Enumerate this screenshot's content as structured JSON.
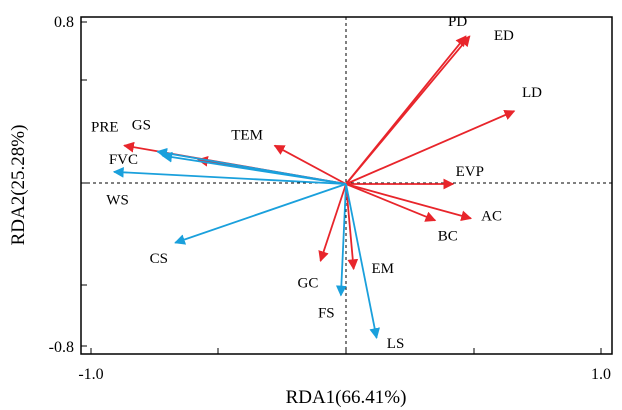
{
  "chart_data": {
    "type": "biplot",
    "xlabel": "RDA1(66.41%)",
    "ylabel": "RDA2(25.28%)",
    "xlim": [
      -1.0,
      1.0
    ],
    "ylim": [
      -0.8,
      0.8
    ],
    "x_ticks": [
      "-1.0",
      "1.0"
    ],
    "y_ticks": [
      "0.8",
      "-0.8"
    ],
    "grid": false,
    "reference_lines": "dashed lines at x=0 and y=0",
    "colors": {
      "environmental": "#e8252b",
      "response": "#1aa0dc"
    },
    "series": [
      {
        "group": "environmental",
        "color": "#e8252b",
        "vectors": [
          {
            "label": "PD",
            "x": 0.47,
            "y": 0.73
          },
          {
            "label": "ED",
            "x": 0.485,
            "y": 0.73
          },
          {
            "label": "LD",
            "x": 0.66,
            "y": 0.36
          },
          {
            "label": "EVP",
            "x": 0.42,
            "y": 0.0
          },
          {
            "label": "AC",
            "x": 0.49,
            "y": -0.17
          },
          {
            "label": "BC",
            "x": 0.35,
            "y": -0.18
          },
          {
            "label": "EM",
            "x": 0.03,
            "y": -0.42
          },
          {
            "label": "GC",
            "x": -0.1,
            "y": -0.38
          },
          {
            "label": "TEM",
            "x": -0.28,
            "y": 0.19
          },
          {
            "label": "PRE",
            "x": -0.87,
            "y": 0.19
          },
          {
            "label": "unlabeled",
            "x": -0.58,
            "y": 0.12
          }
        ]
      },
      {
        "group": "response",
        "color": "#1aa0dc",
        "vectors": [
          {
            "label": "GS",
            "x": -0.74,
            "y": 0.16
          },
          {
            "label": "FVC",
            "x": -0.72,
            "y": 0.14
          },
          {
            "label": "WS",
            "x": -0.91,
            "y": 0.06
          },
          {
            "label": "CS",
            "x": -0.67,
            "y": -0.29
          },
          {
            "label": "FS",
            "x": -0.02,
            "y": -0.55
          },
          {
            "label": "LS",
            "x": 0.12,
            "y": -0.76
          }
        ]
      }
    ],
    "label_positions": [
      {
        "label": "PD",
        "lx": 0.4,
        "ly": 0.78
      },
      {
        "label": "ED",
        "lx": 0.58,
        "ly": 0.71
      },
      {
        "label": "LD",
        "lx": 0.69,
        "ly": 0.43
      },
      {
        "label": "EVP",
        "lx": 0.43,
        "ly": 0.04
      },
      {
        "label": "AC",
        "lx": 0.53,
        "ly": -0.18
      },
      {
        "label": "BC",
        "lx": 0.36,
        "ly": -0.28
      },
      {
        "label": "EM",
        "lx": 0.1,
        "ly": -0.44
      },
      {
        "label": "GC",
        "lx": -0.19,
        "ly": -0.51
      },
      {
        "label": "TEM",
        "lx": -0.45,
        "ly": 0.22
      },
      {
        "label": "PRE",
        "lx": -1.0,
        "ly": 0.26
      },
      {
        "label": "GS",
        "lx": -0.84,
        "ly": 0.27
      },
      {
        "label": "FVC",
        "lx": -0.93,
        "ly": 0.1
      },
      {
        "label": "WS",
        "lx": -0.94,
        "ly": -0.1
      },
      {
        "label": "CS",
        "lx": -0.77,
        "ly": -0.39
      },
      {
        "label": "FS",
        "lx": -0.11,
        "ly": -0.66
      },
      {
        "label": "LS",
        "lx": 0.16,
        "ly": -0.81
      }
    ]
  }
}
